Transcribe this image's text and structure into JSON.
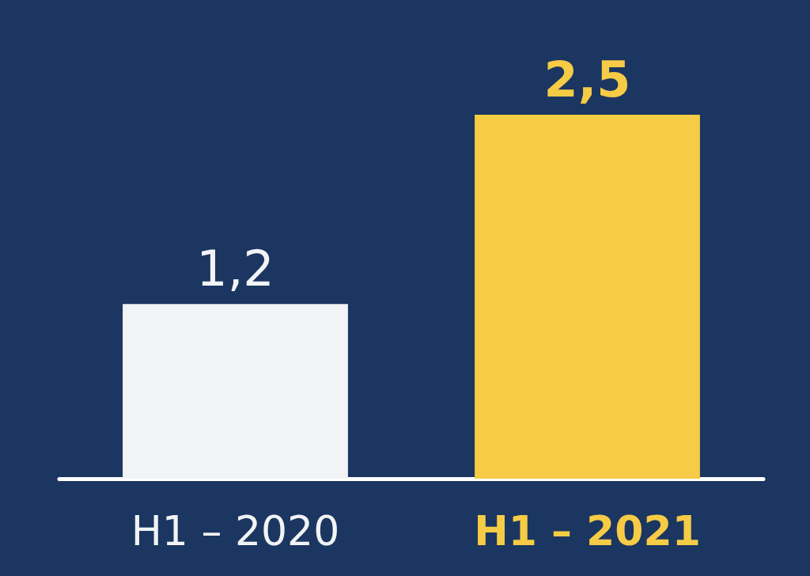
{
  "chart_data": {
    "type": "bar",
    "categories": [
      "H1 – 2020",
      "H1 – 2021"
    ],
    "values": [
      1.2,
      2.5
    ],
    "colors": [
      "#f2f3f5",
      "#f6cb45"
    ],
    "value_labels": [
      "1,2",
      "2,5"
    ],
    "ylim": [
      0,
      2.5
    ],
    "tick_labels": "x",
    "grid": false
  }
}
